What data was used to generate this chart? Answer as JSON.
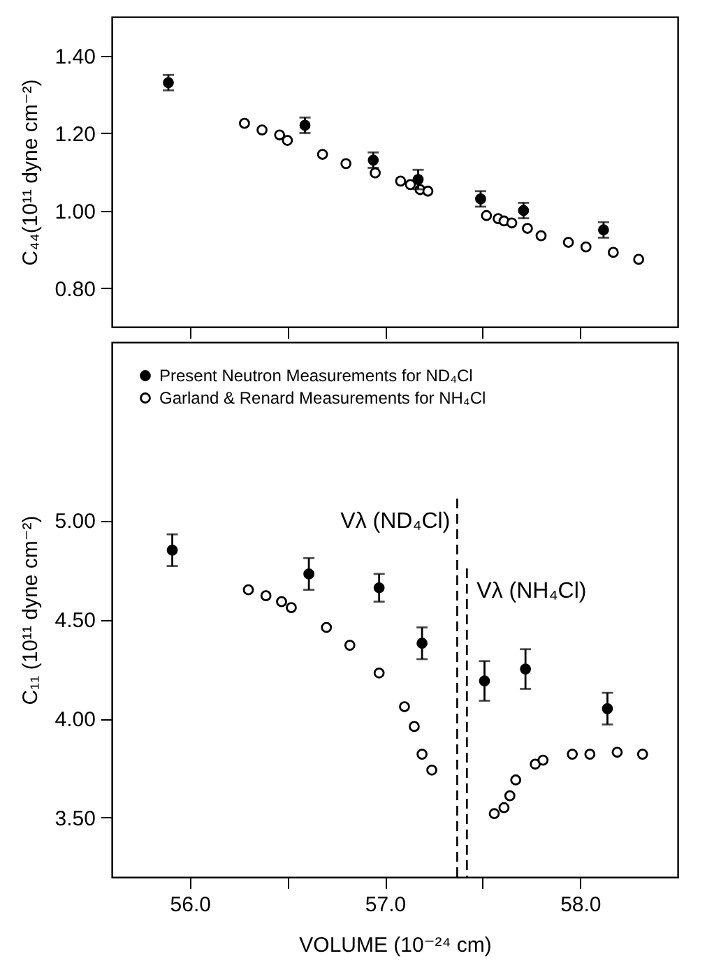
{
  "chart_data": [
    {
      "type": "scatter",
      "ylabel": "C₄₄(10¹¹ dyne cm⁻²)",
      "xlim": [
        55.6,
        58.5
      ],
      "ylim": [
        0.7,
        1.5
      ],
      "xticks": [
        {
          "value": 56.0,
          "label": null
        },
        {
          "value": 56.5,
          "label": null
        },
        {
          "value": 57.0,
          "label": null
        },
        {
          "value": 57.5,
          "label": null
        },
        {
          "value": 58.0,
          "label": null
        }
      ],
      "yticks": [
        {
          "value": 0.8,
          "label": "0.80"
        },
        {
          "value": 1.0,
          "label": "1.00"
        },
        {
          "value": 1.2,
          "label": "1.20"
        },
        {
          "value": 1.4,
          "label": "1.40"
        }
      ],
      "tick_labels": "y",
      "grid": false,
      "marker": "circle",
      "series": [
        {
          "color": "#000000",
          "x": [
            55.89,
            56.59,
            56.94,
            57.17,
            57.49,
            57.71,
            58.12
          ],
          "values": [
            1.33,
            1.22,
            1.13,
            1.08,
            1.03,
            1.0,
            0.95
          ],
          "errors": [
            0.02,
            0.02,
            0.02,
            0.025,
            0.02,
            0.02,
            0.02
          ]
        },
        {
          "color": "#000000",
          "x": [
            56.28,
            56.37,
            56.46,
            56.5,
            56.68,
            56.8,
            56.95,
            57.08,
            57.13,
            57.18,
            57.22,
            57.52,
            57.58,
            57.61,
            57.65,
            57.73,
            57.8,
            57.94,
            58.03,
            58.17,
            58.3
          ],
          "values": [
            1.225,
            1.208,
            1.195,
            1.181,
            1.145,
            1.121,
            1.097,
            1.076,
            1.067,
            1.054,
            1.05,
            0.987,
            0.979,
            0.973,
            0.968,
            0.954,
            0.935,
            0.918,
            0.906,
            0.892,
            0.874
          ]
        }
      ]
    },
    {
      "type": "scatter",
      "xlabel": "VOLUME (10⁻²⁴ cm)",
      "ylabel": "C₁₁ (10¹¹ dyne cm⁻²)",
      "xlim": [
        55.6,
        58.5
      ],
      "ylim": [
        3.2,
        5.9
      ],
      "xticks": [
        {
          "value": 56.0,
          "label": "56.0"
        },
        {
          "value": 56.5,
          "label": null
        },
        {
          "value": 57.0,
          "label": "57.0"
        },
        {
          "value": 57.5,
          "label": null
        },
        {
          "value": 58.0,
          "label": "58.0"
        }
      ],
      "yticks": [
        {
          "value": 3.5,
          "label": "3.50"
        },
        {
          "value": 4.0,
          "label": "4.00"
        },
        {
          "value": 4.5,
          "label": "4.50"
        },
        {
          "value": 5.0,
          "label": "5.00"
        }
      ],
      "grid": false,
      "legend": "top left",
      "marker": "circle",
      "ref_lines": [
        {
          "axis": "x",
          "value": 57.37,
          "label": "Vλ (ND₄Cl)",
          "line_style": "dashed"
        },
        {
          "axis": "x",
          "value": 57.42,
          "label": "Vλ (NH₄Cl)",
          "line_style": "dashed"
        }
      ],
      "series": [
        {
          "name": "Present Neutron Measurements for ND₄Cl",
          "color": "#000000",
          "x": [
            55.91,
            56.61,
            56.97,
            57.19,
            57.51,
            57.72,
            58.14
          ],
          "values": [
            4.85,
            4.73,
            4.66,
            4.38,
            4.19,
            4.25,
            4.05
          ],
          "errors": [
            0.08,
            0.08,
            0.07,
            0.08,
            0.1,
            0.1,
            0.08
          ]
        },
        {
          "name": "Garland & Renard Measurements for NH₄Cl",
          "color": "#000000",
          "x": [
            56.3,
            56.39,
            56.47,
            56.52,
            56.7,
            56.82,
            56.97,
            57.1,
            57.15,
            57.19,
            57.24,
            57.56,
            57.61,
            57.64,
            57.67,
            57.77,
            57.81,
            57.96,
            58.05,
            58.19,
            58.32
          ],
          "values": [
            4.65,
            4.62,
            4.59,
            4.56,
            4.46,
            4.37,
            4.23,
            4.06,
            3.96,
            3.82,
            3.74,
            3.52,
            3.55,
            3.61,
            3.69,
            3.77,
            3.79,
            3.82,
            3.82,
            3.83,
            3.82
          ]
        }
      ]
    }
  ]
}
